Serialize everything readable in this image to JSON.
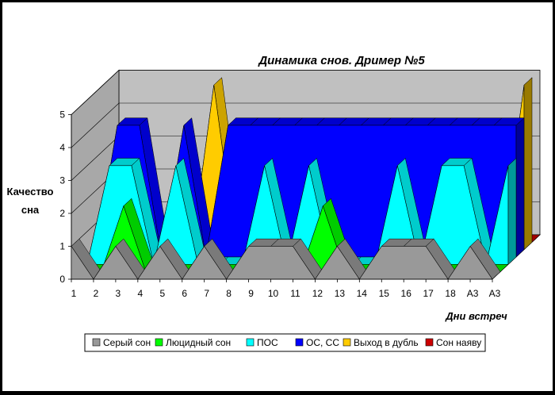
{
  "chart_data": {
    "type": "area",
    "style": "3d-area",
    "title": "Динамика снов.  Дример №5",
    "ylabel_line1": "Качество",
    "ylabel_line2": "сна",
    "xlabel": "Дни встреч",
    "ylim": [
      0,
      5
    ],
    "yticks": [
      "0",
      "1",
      "2",
      "3",
      "4",
      "5"
    ],
    "categories": [
      "1",
      "2",
      "3",
      "4",
      "5",
      "6",
      "7",
      "8",
      "9",
      "10",
      "11",
      "12",
      "13",
      "14",
      "15",
      "16",
      "17",
      "18",
      "А3",
      "А3"
    ],
    "grid": true,
    "legend_position": "bottom",
    "series": [
      {
        "name": "Серый сон",
        "color": "#999999",
        "values": [
          1,
          0,
          1,
          0,
          1,
          0,
          1,
          0,
          1,
          1,
          1,
          0,
          1,
          0,
          1,
          1,
          1,
          0,
          1,
          0
        ]
      },
      {
        "name": "Люцидный сон",
        "color": "#00FF00",
        "values": [
          0,
          0,
          2,
          0,
          0,
          0,
          0,
          0,
          0,
          0,
          0,
          2,
          0,
          0,
          0,
          0,
          0,
          0,
          0,
          0
        ]
      },
      {
        "name": "ПОС",
        "color": "#00FFFF",
        "values": [
          0,
          3,
          3,
          0,
          3,
          0,
          0,
          0,
          3,
          0,
          3,
          0,
          0,
          0,
          3,
          0,
          3,
          3,
          0,
          3
        ]
      },
      {
        "name": "ОС, СС",
        "color": "#0000FF",
        "values": [
          0,
          4,
          4,
          0,
          4,
          0,
          4,
          4,
          4,
          4,
          4,
          4,
          4,
          4,
          4,
          4,
          4,
          4,
          4,
          4
        ]
      },
      {
        "name": "Выход в дубль",
        "color": "#FFCC00",
        "values": [
          0,
          0,
          0,
          0,
          0,
          5,
          0,
          0,
          0,
          0,
          0,
          0,
          0,
          0,
          0,
          0,
          0,
          0,
          0,
          5
        ]
      },
      {
        "name": "Сон наяву",
        "color": "#CC0000",
        "values": [
          0,
          0,
          0,
          0,
          0,
          0,
          0,
          0,
          0,
          0,
          0,
          0,
          0,
          0,
          0,
          0,
          0,
          0,
          0,
          0
        ]
      }
    ]
  }
}
